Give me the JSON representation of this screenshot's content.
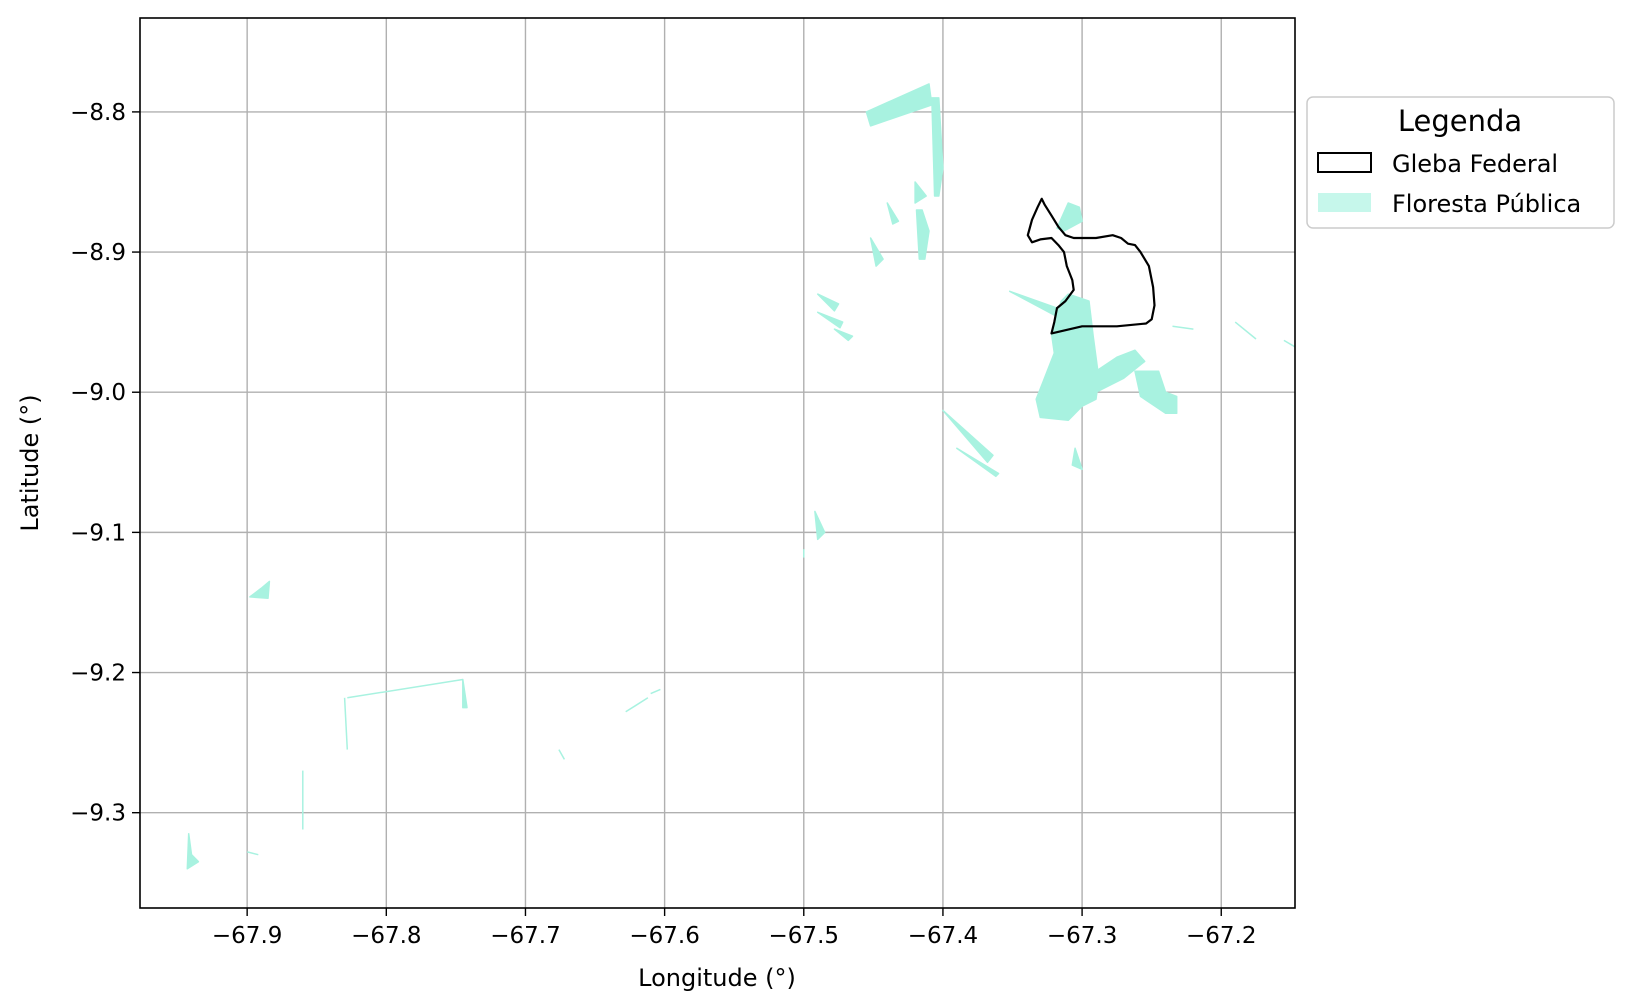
{
  "colors": {
    "forest": "#a8f2e0",
    "boundary": "#000000",
    "grid": "#b0b0b0"
  },
  "chart_data": {
    "type": "map",
    "xlabel": "Longitude (°)",
    "ylabel": "Latitude (°)",
    "xlim": [
      -67.977,
      -67.147
    ],
    "ylim": [
      -9.368,
      -8.733
    ],
    "grid": true,
    "xticks": [
      -67.9,
      -67.8,
      -67.7,
      -67.6,
      -67.5,
      -67.4,
      -67.3,
      -67.2
    ],
    "xtick_labels": [
      "−67.9",
      "−67.8",
      "−67.7",
      "−67.6",
      "−67.5",
      "−67.4",
      "−67.3",
      "−67.2"
    ],
    "yticks": [
      -8.8,
      -8.9,
      -9.0,
      -9.1,
      -9.2,
      -9.3
    ],
    "ytick_labels": [
      "−8.8",
      "−8.9",
      "−9.0",
      "−9.1",
      "−9.2",
      "−9.3"
    ],
    "legend": {
      "title": "Legenda",
      "placement": "outside-upper-right",
      "entries": [
        {
          "label": "Gleba Federal",
          "style": "outline"
        },
        {
          "label": "Floresta Pública",
          "style": "fill"
        }
      ]
    },
    "gleba_federal": [
      [
        -67.329,
        -8.862
      ],
      [
        -67.332,
        -8.868
      ],
      [
        -67.336,
        -8.877
      ],
      [
        -67.339,
        -8.888
      ],
      [
        -67.336,
        -8.893
      ],
      [
        -67.33,
        -8.891
      ],
      [
        -67.322,
        -8.89
      ],
      [
        -67.317,
        -8.895
      ],
      [
        -67.313,
        -8.9
      ],
      [
        -67.311,
        -8.91
      ],
      [
        -67.307,
        -8.92
      ],
      [
        -67.306,
        -8.927
      ],
      [
        -67.312,
        -8.935
      ],
      [
        -67.318,
        -8.94
      ],
      [
        -67.32,
        -8.95
      ],
      [
        -67.322,
        -8.958
      ],
      [
        -67.3,
        -8.953
      ],
      [
        -67.275,
        -8.953
      ],
      [
        -67.254,
        -8.951
      ],
      [
        -67.25,
        -8.948
      ],
      [
        -67.248,
        -8.938
      ],
      [
        -67.249,
        -8.925
      ],
      [
        -67.252,
        -8.91
      ],
      [
        -67.255,
        -8.905
      ],
      [
        -67.258,
        -8.9
      ],
      [
        -67.262,
        -8.895
      ],
      [
        -67.267,
        -8.894
      ],
      [
        -67.272,
        -8.89
      ],
      [
        -67.278,
        -8.888
      ],
      [
        -67.29,
        -8.89
      ],
      [
        -67.306,
        -8.89
      ],
      [
        -67.312,
        -8.888
      ],
      [
        -67.317,
        -8.882
      ],
      [
        -67.322,
        -8.874
      ],
      [
        -67.327,
        -8.866
      ],
      [
        -67.329,
        -8.862
      ]
    ],
    "floresta_publica": [
      [
        [
          -67.315,
          -8.935
        ],
        [
          -67.31,
          -8.93
        ],
        [
          -67.295,
          -8.935
        ],
        [
          -67.292,
          -8.96
        ],
        [
          -67.288,
          -8.99
        ],
        [
          -67.29,
          -9.005
        ],
        [
          -67.3,
          -9.01
        ],
        [
          -67.31,
          -9.02
        ],
        [
          -67.33,
          -9.018
        ],
        [
          -67.333,
          -9.005
        ],
        [
          -67.327,
          -8.99
        ],
        [
          -67.32,
          -8.972
        ],
        [
          -67.322,
          -8.958
        ]
      ],
      [
        [
          -67.29,
          -8.985
        ],
        [
          -67.275,
          -8.975
        ],
        [
          -67.262,
          -8.97
        ],
        [
          -67.255,
          -8.978
        ],
        [
          -67.27,
          -8.99
        ],
        [
          -67.29,
          -9.0
        ]
      ],
      [
        [
          -67.262,
          -8.985
        ],
        [
          -67.245,
          -8.985
        ],
        [
          -67.24,
          -9.0
        ],
        [
          -67.232,
          -9.003
        ],
        [
          -67.232,
          -9.015
        ],
        [
          -67.24,
          -9.015
        ],
        [
          -67.258,
          -9.003
        ]
      ],
      [
        [
          -67.318,
          -8.883
        ],
        [
          -67.313,
          -8.885
        ],
        [
          -67.3,
          -8.878
        ],
        [
          -67.302,
          -8.868
        ],
        [
          -67.31,
          -8.865
        ]
      ],
      [
        [
          -67.352,
          -8.928
        ],
        [
          -67.32,
          -8.945
        ],
        [
          -67.318,
          -8.94
        ]
      ],
      [
        [
          -67.4,
          -9.013
        ],
        [
          -67.368,
          -9.05
        ],
        [
          -67.364,
          -9.045
        ]
      ],
      [
        [
          -67.455,
          -8.8
        ],
        [
          -67.41,
          -8.78
        ],
        [
          -67.408,
          -8.795
        ],
        [
          -67.452,
          -8.81
        ]
      ],
      [
        [
          -67.403,
          -8.79
        ],
        [
          -67.4,
          -8.84
        ],
        [
          -67.403,
          -8.86
        ],
        [
          -67.406,
          -8.86
        ],
        [
          -67.408,
          -8.79
        ]
      ],
      [
        [
          -67.415,
          -8.87
        ],
        [
          -67.41,
          -8.885
        ],
        [
          -67.413,
          -8.905
        ],
        [
          -67.417,
          -8.905
        ],
        [
          -67.419,
          -8.87
        ]
      ],
      [
        [
          -67.42,
          -8.85
        ],
        [
          -67.42,
          -8.865
        ],
        [
          -67.412,
          -8.86
        ]
      ],
      [
        [
          -67.44,
          -8.865
        ],
        [
          -67.432,
          -8.878
        ],
        [
          -67.436,
          -8.88
        ]
      ],
      [
        [
          -67.452,
          -8.89
        ],
        [
          -67.448,
          -8.91
        ],
        [
          -67.443,
          -8.905
        ]
      ],
      [
        [
          -67.49,
          -8.93
        ],
        [
          -67.475,
          -8.937
        ],
        [
          -67.478,
          -8.942
        ]
      ],
      [
        [
          -67.49,
          -8.943
        ],
        [
          -67.472,
          -8.95
        ],
        [
          -67.474,
          -8.954
        ]
      ],
      [
        [
          -67.478,
          -8.955
        ],
        [
          -67.465,
          -8.96
        ],
        [
          -67.468,
          -8.963
        ]
      ],
      [
        [
          -67.39,
          -9.04
        ],
        [
          -67.36,
          -9.058
        ],
        [
          -67.362,
          -9.06
        ]
      ],
      [
        [
          -67.305,
          -9.04
        ],
        [
          -67.3,
          -9.055
        ],
        [
          -67.307,
          -9.052
        ]
      ],
      [
        [
          -67.884,
          -9.135
        ],
        [
          -67.885,
          -9.147
        ],
        [
          -67.898,
          -9.146
        ],
        [
          -67.89,
          -9.14
        ]
      ],
      [
        [
          -67.745,
          -9.205
        ],
        [
          -67.742,
          -9.225
        ],
        [
          -67.745,
          -9.225
        ]
      ],
      [
        [
          -67.942,
          -9.315
        ],
        [
          -67.943,
          -9.34
        ],
        [
          -67.935,
          -9.335
        ],
        [
          -67.94,
          -9.33
        ]
      ],
      [
        [
          -67.492,
          -9.085
        ],
        [
          -67.49,
          -9.105
        ],
        [
          -67.485,
          -9.1
        ]
      ]
    ],
    "forest_traces": [
      [
        [
          -67.828,
          -9.218
        ],
        [
          -67.745,
          -9.205
        ]
      ],
      [
        [
          -67.83,
          -9.218
        ],
        [
          -67.828,
          -9.255
        ]
      ],
      [
        [
          -67.86,
          -9.27
        ],
        [
          -67.86,
          -9.312
        ]
      ],
      [
        [
          -67.9,
          -9.328
        ],
        [
          -67.892,
          -9.33
        ]
      ],
      [
        [
          -67.676,
          -9.255
        ],
        [
          -67.672,
          -9.262
        ]
      ],
      [
        [
          -67.628,
          -9.228
        ],
        [
          -67.612,
          -9.218
        ]
      ],
      [
        [
          -67.61,
          -9.215
        ],
        [
          -67.603,
          -9.212
        ]
      ],
      [
        [
          -67.5,
          -9.112
        ],
        [
          -67.5,
          -9.118
        ]
      ],
      [
        [
          -67.155,
          -8.963
        ],
        [
          -67.143,
          -8.97
        ]
      ],
      [
        [
          -67.19,
          -8.95
        ],
        [
          -67.175,
          -8.962
        ]
      ],
      [
        [
          -67.235,
          -8.953
        ],
        [
          -67.22,
          -8.955
        ]
      ]
    ]
  }
}
